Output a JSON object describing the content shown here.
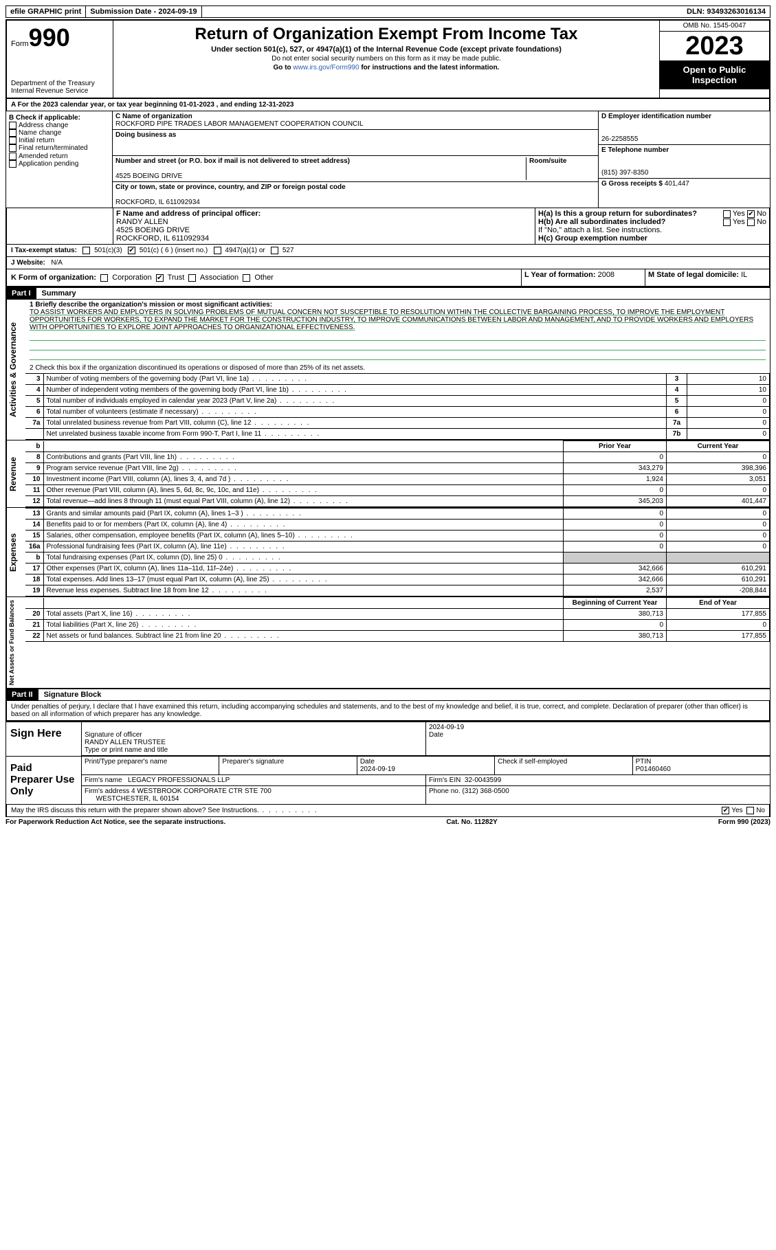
{
  "topbar": {
    "efile": "efile GRAPHIC print",
    "subdate_lbl": "Submission Date -",
    "subdate": "2024-09-19",
    "dln_lbl": "DLN:",
    "dln": "93493263016134"
  },
  "header": {
    "form_word": "Form",
    "form_num": "990",
    "dept": "Department of the Treasury Internal Revenue Service",
    "title": "Return of Organization Exempt From Income Tax",
    "sub": "Under section 501(c), 527, or 4947(a)(1) of the Internal Revenue Code (except private foundations)",
    "note1": "Do not enter social security numbers on this form as it may be made public.",
    "note2_pre": "Go to ",
    "note2_link": "www.irs.gov/Form990",
    "note2_post": " for instructions and the latest information.",
    "omb": "OMB No. 1545-0047",
    "year": "2023",
    "open1": "Open to Public",
    "open2": "Inspection"
  },
  "periodA": "A  For the 2023 calendar year, or tax year beginning 01-01-2023   , and ending 12-31-2023",
  "sectionB": {
    "lbl": "B Check if applicable:",
    "opts": [
      "Address change",
      "Name change",
      "Initial return",
      "Final return/terminated",
      "Amended return",
      "Application pending"
    ]
  },
  "sectionC": {
    "name_lbl": "C Name of organization",
    "name": "ROCKFORD PIPE TRADES LABOR MANAGEMENT COOPERATION COUNCIL",
    "dba_lbl": "Doing business as",
    "street_lbl": "Number and street (or P.O. box if mail is not delivered to street address)",
    "room_lbl": "Room/suite",
    "street": "4525 BOEING DRIVE",
    "city_lbl": "City or town, state or province, country, and ZIP or foreign postal code",
    "city": "ROCKFORD, IL  611092934"
  },
  "sectionD": {
    "ein_lbl": "D Employer identification number",
    "ein": "26-2258555",
    "phone_lbl": "E Telephone number",
    "phone": "(815) 397-8350",
    "gross_lbl": "G Gross receipts $",
    "gross": "401,447"
  },
  "sectionF": {
    "lbl": "F  Name and address of principal officer:",
    "name": "RANDY ALLEN",
    "addr1": "4525 BOEING DRIVE",
    "addr2": "ROCKFORD, IL  611092934"
  },
  "sectionH": {
    "ha": "H(a)  Is this a group return for subordinates?",
    "hb": "H(b)  Are all subordinates included?",
    "hb_note": "If \"No,\" attach a list. See instructions.",
    "hc": "H(c)  Group exemption number",
    "yes": "Yes",
    "no": "No"
  },
  "lineI": {
    "lbl": "I    Tax-exempt status:",
    "o1": "501(c)(3)",
    "o2": "501(c) ( 6 ) (insert no.)",
    "o3": "4947(a)(1) or",
    "o4": "527"
  },
  "lineJ": {
    "lbl": "J   Website:",
    "val": "N/A"
  },
  "lineK": {
    "lbl": "K Form of organization:",
    "opts": [
      "Corporation",
      "Trust",
      "Association",
      "Other"
    ],
    "checked": 1
  },
  "lineL": {
    "lbl": "L Year of formation:",
    "val": "2008"
  },
  "lineM": {
    "lbl": "M State of legal domicile:",
    "val": "IL"
  },
  "part1": {
    "hdr": "Part I",
    "title": "Summary",
    "q1_lbl": "1   Briefly describe the organization's mission or most significant activities:",
    "q1": "TO ASSIST WORKERS AND EMPLOYERS IN SOLVING PROBLEMS OF MUTUAL CONCERN NOT SUSCEPTIBLE TO RESOLUTION WITHIN THE COLLECTIVE BARGAINING PROCESS, TO IMPROVE THE EMPLOYMENT OPPORTUNITIES FOR WORKERS, TO EXPAND THE MARKET FOR THE CONSTRUCTION INDUSTRY, TO IMPROVE COMMUNICATIONS BETWEEN LABOR AND MANAGEMENT, AND TO PROVIDE WORKERS AND EMPLOYERS WITH OPPORTUNITIES TO EXPLORE JOINT APPROACHES TO ORGANIZATIONAL EFFECTIVENESS.",
    "q2": "2   Check this box      if the organization discontinued its operations or disposed of more than 25% of its net assets."
  },
  "gov_rows": [
    {
      "n": "3",
      "d": "Number of voting members of the governing body (Part VI, line 1a)",
      "box": "3",
      "v": "10"
    },
    {
      "n": "4",
      "d": "Number of independent voting members of the governing body (Part VI, line 1b)",
      "box": "4",
      "v": "10"
    },
    {
      "n": "5",
      "d": "Total number of individuals employed in calendar year 2023 (Part V, line 2a)",
      "box": "5",
      "v": "0"
    },
    {
      "n": "6",
      "d": "Total number of volunteers (estimate if necessary)",
      "box": "6",
      "v": "0"
    },
    {
      "n": "7a",
      "d": "Total unrelated business revenue from Part VIII, column (C), line 12",
      "box": "7a",
      "v": "0"
    },
    {
      "n": "",
      "d": "Net unrelated business taxable income from Form 990-T, Part I, line 11",
      "box": "7b",
      "v": "0"
    }
  ],
  "col_hdr": {
    "prior": "Prior Year",
    "curr": "Current Year",
    "boy": "Beginning of Current Year",
    "eoy": "End of Year"
  },
  "rev_rows": [
    {
      "n": "8",
      "d": "Contributions and grants (Part VIII, line 1h)",
      "p": "0",
      "c": "0"
    },
    {
      "n": "9",
      "d": "Program service revenue (Part VIII, line 2g)",
      "p": "343,279",
      "c": "398,396"
    },
    {
      "n": "10",
      "d": "Investment income (Part VIII, column (A), lines 3, 4, and 7d )",
      "p": "1,924",
      "c": "3,051"
    },
    {
      "n": "11",
      "d": "Other revenue (Part VIII, column (A), lines 5, 6d, 8c, 9c, 10c, and 11e)",
      "p": "0",
      "c": "0"
    },
    {
      "n": "12",
      "d": "Total revenue—add lines 8 through 11 (must equal Part VIII, column (A), line 12)",
      "p": "345,203",
      "c": "401,447"
    }
  ],
  "exp_rows": [
    {
      "n": "13",
      "d": "Grants and similar amounts paid (Part IX, column (A), lines 1–3 )",
      "p": "0",
      "c": "0"
    },
    {
      "n": "14",
      "d": "Benefits paid to or for members (Part IX, column (A), line 4)",
      "p": "0",
      "c": "0"
    },
    {
      "n": "15",
      "d": "Salaries, other compensation, employee benefits (Part IX, column (A), lines 5–10)",
      "p": "0",
      "c": "0"
    },
    {
      "n": "16a",
      "d": "Professional fundraising fees (Part IX, column (A), line 11e)",
      "p": "0",
      "c": "0"
    },
    {
      "n": "b",
      "d": "Total fundraising expenses (Part IX, column (D), line 25) 0",
      "p": "grey",
      "c": "grey"
    },
    {
      "n": "17",
      "d": "Other expenses (Part IX, column (A), lines 11a–11d, 11f–24e)",
      "p": "342,666",
      "c": "610,291"
    },
    {
      "n": "18",
      "d": "Total expenses. Add lines 13–17 (must equal Part IX, column (A), line 25)",
      "p": "342,666",
      "c": "610,291"
    },
    {
      "n": "19",
      "d": "Revenue less expenses. Subtract line 18 from line 12",
      "p": "2,537",
      "c": "-208,844"
    }
  ],
  "net_rows": [
    {
      "n": "20",
      "d": "Total assets (Part X, line 16)",
      "p": "380,713",
      "c": "177,855"
    },
    {
      "n": "21",
      "d": "Total liabilities (Part X, line 26)",
      "p": "0",
      "c": "0"
    },
    {
      "n": "22",
      "d": "Net assets or fund balances. Subtract line 21 from line 20",
      "p": "380,713",
      "c": "177,855"
    }
  ],
  "vlabels": {
    "gov": "Activities & Governance",
    "rev": "Revenue",
    "exp": "Expenses",
    "net": "Net Assets or Fund Balances"
  },
  "part2": {
    "hdr": "Part II",
    "title": "Signature Block",
    "decl": "Under penalties of perjury, I declare that I have examined this return, including accompanying schedules and statements, and to the best of my knowledge and belief, it is true, correct, and complete. Declaration of preparer (other than officer) is based on all information of which preparer has any knowledge."
  },
  "sign": {
    "here": "Sign Here",
    "sig_lbl": "Signature of officer",
    "date_lbl": "Date",
    "date": "2024-09-19",
    "name": "RANDY ALLEN  TRUSTEE",
    "name_lbl": "Type or print name and title"
  },
  "paid": {
    "lbl": "Paid Preparer Use Only",
    "pname_lbl": "Print/Type preparer's name",
    "psig_lbl": "Preparer's signature",
    "pdate_lbl": "Date",
    "pdate": "2024-09-19",
    "self_lbl": "Check       if self-employed",
    "ptin_lbl": "PTIN",
    "ptin": "P01460460",
    "firm_lbl": "Firm's name",
    "firm": "LEGACY PROFESSIONALS LLP",
    "fein_lbl": "Firm's EIN",
    "fein": "32-0043599",
    "faddr_lbl": "Firm's address",
    "faddr1": "4 WESTBROOK CORPORATE CTR STE 700",
    "faddr2": "WESTCHESTER, IL  60154",
    "fphone_lbl": "Phone no.",
    "fphone": "(312) 368-0500"
  },
  "discuss": {
    "q": "May the IRS discuss this return with the preparer shown above? See Instructions.",
    "yes": "Yes",
    "no": "No"
  },
  "footer": {
    "pra": "For Paperwork Reduction Act Notice, see the separate instructions.",
    "cat": "Cat. No. 11282Y",
    "form": "Form 990 (2023)"
  }
}
